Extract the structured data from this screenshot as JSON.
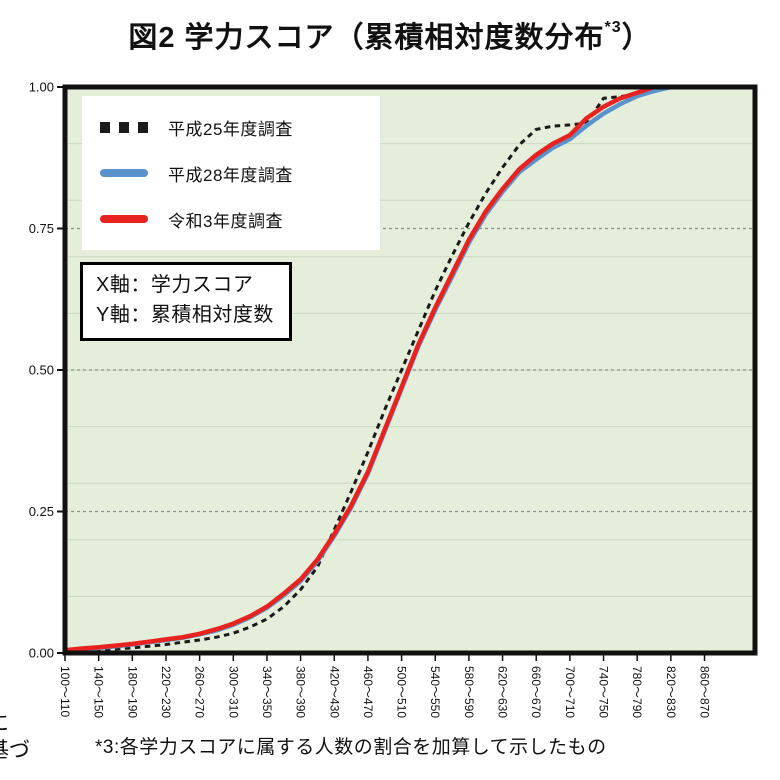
{
  "title": {
    "text": "図2 学力スコア（累積相対度数分布",
    "superscript": "*3",
    "closing": "）"
  },
  "legend": {
    "items": [
      {
        "label": "平成25年度調査",
        "marker": "dotted-squares",
        "color": "#1a1a1a"
      },
      {
        "label": "平成28年度調査",
        "marker": "solid-line",
        "color": "#5a93cc"
      },
      {
        "label": "令和3年度調査",
        "marker": "solid-line",
        "color": "#e8231f"
      }
    ]
  },
  "annotation": {
    "line1": "X軸：学力スコア",
    "line2": "Y軸：累積相対度数"
  },
  "footnote": "*3:各学力スコアに属する人数の割合を加算して示したもの",
  "clipped_text": {
    "line1": "に",
    "line2": "基づ"
  },
  "colors": {
    "plot_background": "#e4eeda",
    "plot_border": "#111111",
    "grid_minor": "#ccd9c2",
    "grid_major": "#8c8c8c",
    "h25_black": "#1a1a1a",
    "h28_blue": "#5a93cc",
    "r3_red": "#e8231f"
  },
  "chart_data": {
    "type": "line",
    "title": "図2 学力スコア（累積相対度数分布*3）",
    "xlabel": "学力スコア",
    "ylabel": "累積相対度数",
    "xlim": [
      100,
      920
    ],
    "ylim": [
      0,
      1
    ],
    "grid": {
      "minor_step": 0.1,
      "major_dashed_at": [
        0.25,
        0.5,
        0.75
      ]
    },
    "legend_position": "top-left",
    "y_ticks": [
      0,
      0.25,
      0.5,
      0.75,
      1
    ],
    "y_tick_labels": [
      "0.00",
      "0.25",
      "0.50",
      "0.75",
      "1.00"
    ],
    "x_ticks": [
      100,
      140,
      180,
      220,
      260,
      300,
      340,
      380,
      420,
      460,
      500,
      540,
      580,
      620,
      660,
      700,
      740,
      780,
      820,
      860
    ],
    "x_tick_labels": [
      "100～110",
      "140～150",
      "180～190",
      "220～230",
      "260～270",
      "300～310",
      "340～350",
      "380～390",
      "420～430",
      "460～470",
      "500～510",
      "540～550",
      "580～590",
      "620～630",
      "660～670",
      "700～710",
      "740～750",
      "780～790",
      "820～830",
      "860～870"
    ],
    "x": [
      100,
      120,
      140,
      160,
      180,
      200,
      220,
      240,
      260,
      280,
      300,
      320,
      340,
      360,
      380,
      400,
      420,
      440,
      460,
      480,
      500,
      520,
      540,
      560,
      580,
      600,
      620,
      640,
      660,
      680,
      700,
      720,
      740,
      760,
      780,
      800,
      820,
      840,
      860,
      880,
      900,
      920
    ],
    "series": [
      {
        "name": "平成25年度調査",
        "line": "dotted",
        "color": "#1a1a1a",
        "values": [
          0.002,
          0.003,
          0.005,
          0.007,
          0.009,
          0.012,
          0.015,
          0.019,
          0.023,
          0.028,
          0.035,
          0.046,
          0.06,
          0.082,
          0.112,
          0.152,
          0.218,
          0.285,
          0.355,
          0.43,
          0.5,
          0.57,
          0.64,
          0.702,
          0.76,
          0.812,
          0.858,
          0.898,
          0.925,
          0.931,
          0.933,
          0.936,
          0.98,
          0.983,
          0.988,
          0.998,
          1,
          1,
          1,
          1,
          1,
          1
        ]
      },
      {
        "name": "平成28年度調査",
        "line": "solid",
        "color": "#5a93cc",
        "values": [
          0.004,
          0.006,
          0.009,
          0.012,
          0.015,
          0.019,
          0.023,
          0.027,
          0.033,
          0.04,
          0.05,
          0.063,
          0.08,
          0.102,
          0.127,
          0.162,
          0.207,
          0.257,
          0.317,
          0.392,
          0.467,
          0.542,
          0.606,
          0.665,
          0.725,
          0.775,
          0.815,
          0.85,
          0.872,
          0.893,
          0.908,
          0.932,
          0.953,
          0.97,
          0.984,
          0.993,
          1,
          1,
          1,
          1,
          1,
          1
        ]
      },
      {
        "name": "令和3年度調査",
        "line": "solid",
        "color": "#e8231f",
        "values": [
          0.005,
          0.008,
          0.01,
          0.013,
          0.016,
          0.02,
          0.024,
          0.028,
          0.034,
          0.042,
          0.052,
          0.065,
          0.082,
          0.105,
          0.13,
          0.165,
          0.21,
          0.26,
          0.32,
          0.395,
          0.47,
          0.545,
          0.61,
          0.67,
          0.73,
          0.78,
          0.82,
          0.855,
          0.88,
          0.9,
          0.915,
          0.945,
          0.965,
          0.98,
          0.99,
          1,
          1,
          1,
          1,
          1,
          1,
          1
        ]
      }
    ]
  }
}
